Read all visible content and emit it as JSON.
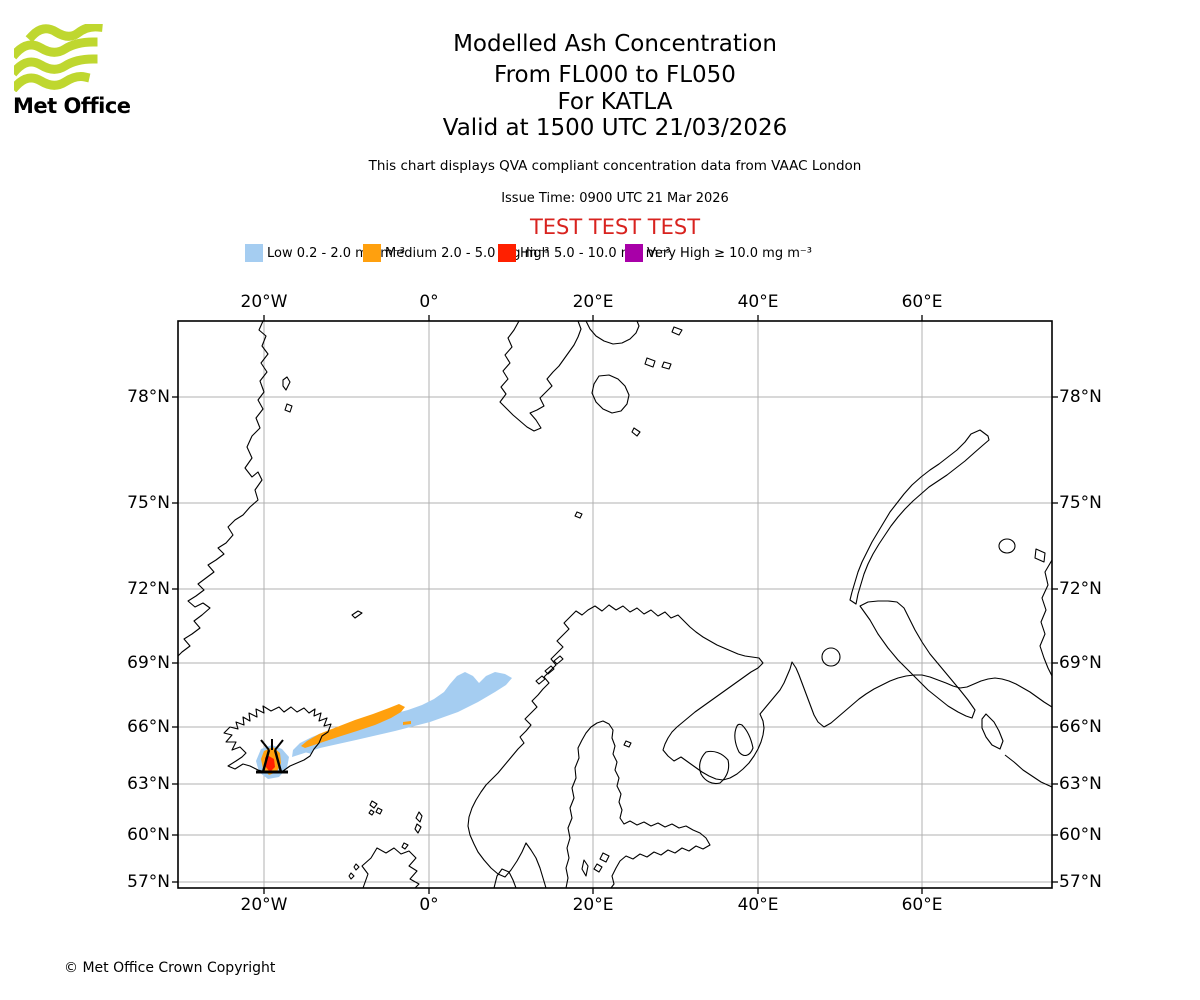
{
  "header": {
    "logo_text": "Met Office",
    "title": "Modelled Ash Concentration",
    "subtitle_fl": "From FL000 to FL050",
    "subtitle_volcano": "For KATLA",
    "subtitle_valid": "Valid at 1500 UTC 21/03/2026",
    "note": "This chart displays QVA compliant concentration data from VAAC London",
    "issue_time": "Issue Time: 0900 UTC 21 Mar 2026",
    "test_banner": "TEST TEST TEST"
  },
  "legend": {
    "items": [
      {
        "key": "low",
        "label": "Low 0.2 - 2.0 mg m⁻³",
        "color": "#A5CDF1"
      },
      {
        "key": "medium",
        "label": "Medium 2.0 - 5.0 mg m⁻³",
        "color": "#FFA00E"
      },
      {
        "key": "high",
        "label": "High 5.0 - 10.0 mg m⁻³",
        "color": "#FF2000"
      },
      {
        "key": "very_high",
        "label": "Very High ≥ 10.0 mg m⁻³",
        "color": "#A800A8"
      }
    ]
  },
  "map": {
    "lon_labels": [
      "20°W",
      "0°",
      "20°E",
      "40°E",
      "60°E"
    ],
    "lat_labels": [
      "78°N",
      "75°N",
      "72°N",
      "69°N",
      "66°N",
      "63°N",
      "60°N",
      "57°N"
    ]
  },
  "ash_plume": {
    "volcano_name": "KATLA",
    "polygons": [
      {
        "level": "low",
        "points": [
          [
            292,
            757
          ],
          [
            320,
            748
          ],
          [
            356,
            740
          ],
          [
            395,
            731
          ],
          [
            430,
            722
          ],
          [
            458,
            712
          ],
          [
            478,
            702
          ],
          [
            495,
            692
          ],
          [
            506,
            685
          ],
          [
            512,
            678
          ],
          [
            505,
            674
          ],
          [
            495,
            672
          ],
          [
            486,
            676
          ],
          [
            479,
            683
          ],
          [
            473,
            676
          ],
          [
            465,
            672
          ],
          [
            457,
            676
          ],
          [
            450,
            684
          ],
          [
            444,
            692
          ],
          [
            434,
            699
          ],
          [
            422,
            705
          ],
          [
            408,
            710
          ],
          [
            393,
            714
          ],
          [
            377,
            718
          ],
          [
            360,
            722
          ],
          [
            343,
            727
          ],
          [
            327,
            731
          ],
          [
            312,
            737
          ],
          [
            300,
            743
          ],
          [
            293,
            750
          ]
        ]
      },
      {
        "level": "low",
        "points": [
          [
            261,
            749
          ],
          [
            272,
            745
          ],
          [
            282,
            749
          ],
          [
            289,
            757
          ],
          [
            287,
            768
          ],
          [
            279,
            777
          ],
          [
            268,
            779
          ],
          [
            259,
            772
          ],
          [
            256,
            761
          ]
        ]
      },
      {
        "level": "low",
        "points": [
          [
            301,
            747
          ],
          [
            313,
            750
          ],
          [
            312,
            754
          ],
          [
            300,
            751
          ]
        ]
      },
      {
        "level": "medium",
        "points": [
          [
            305,
            748
          ],
          [
            320,
            743
          ],
          [
            338,
            737
          ],
          [
            357,
            731
          ],
          [
            375,
            725
          ],
          [
            391,
            718
          ],
          [
            401,
            712
          ],
          [
            405,
            707
          ],
          [
            399,
            704
          ],
          [
            389,
            708
          ],
          [
            373,
            714
          ],
          [
            355,
            720
          ],
          [
            337,
            727
          ],
          [
            319,
            734
          ],
          [
            307,
            741
          ],
          [
            301,
            746
          ]
        ]
      },
      {
        "level": "medium",
        "points": [
          [
            403,
            722
          ],
          [
            411,
            721
          ],
          [
            411,
            724
          ],
          [
            403,
            725
          ]
        ]
      },
      {
        "level": "medium",
        "points": [
          [
            264,
            751
          ],
          [
            273,
            747
          ],
          [
            280,
            753
          ],
          [
            281,
            763
          ],
          [
            277,
            772
          ],
          [
            269,
            775
          ],
          [
            263,
            769
          ],
          [
            261,
            759
          ]
        ]
      },
      {
        "level": "high",
        "points": [
          [
            267,
            755
          ],
          [
            274,
            759
          ],
          [
            275,
            767
          ],
          [
            270,
            772
          ],
          [
            265,
            766
          ],
          [
            265,
            758
          ]
        ]
      }
    ]
  },
  "footer": {
    "copyright": "© Met Office Crown Copyright"
  }
}
